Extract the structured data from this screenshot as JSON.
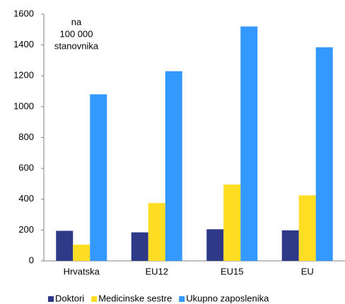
{
  "chart_data": {
    "type": "bar",
    "annotation": [
      "na",
      "100 000",
      "stanovnika"
    ],
    "categories": [
      "Hrvatska",
      "EU12",
      "EU15",
      "EU"
    ],
    "series": [
      {
        "name": "Doktori",
        "color": "#2e3a87",
        "values": [
          195,
          185,
          205,
          198
        ]
      },
      {
        "name": "Medicinske sestre",
        "color": "#ffdd22",
        "values": [
          105,
          375,
          495,
          425
        ]
      },
      {
        "name": "Ukupno zaposlenika",
        "color": "#3399ff",
        "values": [
          1080,
          1230,
          1520,
          1385
        ]
      }
    ],
    "ylim": [
      0,
      1600
    ],
    "yticks": [
      0,
      200,
      400,
      600,
      800,
      1000,
      1200,
      1400,
      1600
    ],
    "grid": false,
    "legend": "bottom"
  }
}
